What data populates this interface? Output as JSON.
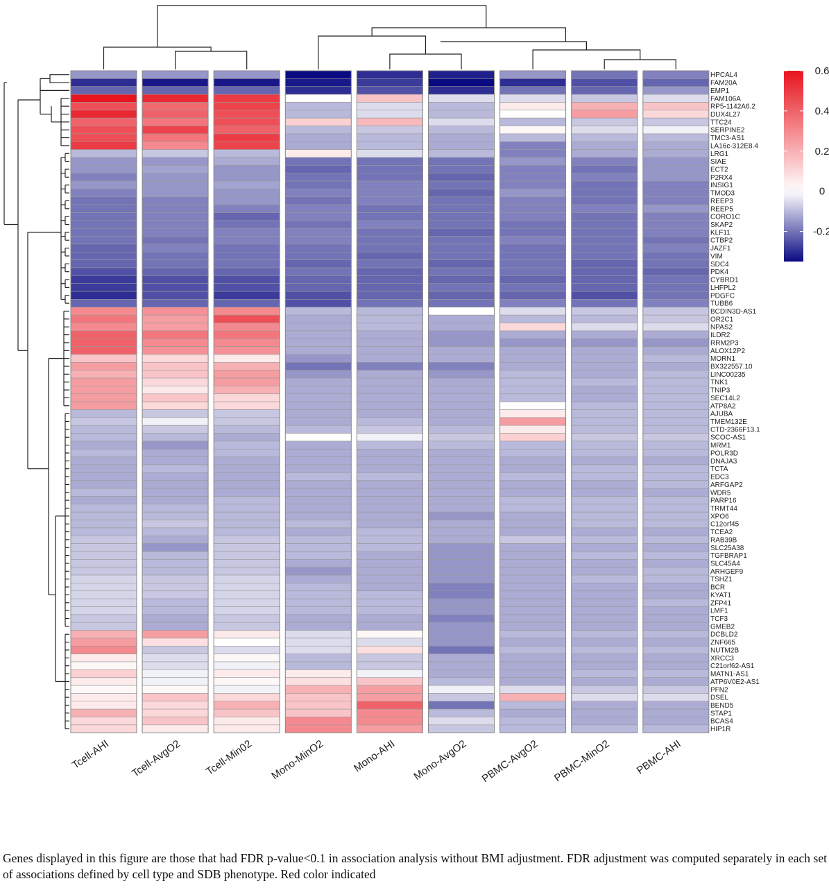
{
  "chart_data": {
    "type": "heatmap",
    "columns": [
      "Tcell-AHI",
      "Tcell-AvgO2",
      "Tcell-Min02",
      "Mono-MinO2",
      "Mono-AHI",
      "Mono-AvgO2",
      "PBMC-AvgO2",
      "PBMC-MinO2",
      "PBMC-AHI"
    ],
    "rows": [
      "HPCAL4",
      "FAM20A",
      "EMP1",
      "FAM106A",
      "RP5-1142A6.2",
      "DUX4L27",
      "TTC24",
      "SERPINE2",
      "TMC3-AS1",
      "LA16c-312E8.4",
      "LRG1",
      "SIAE",
      "ECT2",
      "P2RX4",
      "INSIG1",
      "TMOD3",
      "REEP3",
      "REEP5",
      "CORO1C",
      "SKAP2",
      "KLF11",
      "CTBP2",
      "JAZF1",
      "VIM",
      "SDC4",
      "PDK4",
      "CYBRD1",
      "LHFPL2",
      "PDGFC",
      "TUBB6",
      "BCDIN3D-AS1",
      "OR2C1",
      "NPAS2",
      "ILDR2",
      "RRM2P3",
      "ALOX12P2",
      "MORN1",
      "BX322557.10",
      "LINC00235",
      "TNK1",
      "TNIP3",
      "SEC14L2",
      "ATP8A2",
      "AJUBA",
      "TMEM132E",
      "CTD-2366F13.1",
      "SCOC-AS1",
      "MRM1",
      "POLR3D",
      "DNAJA3",
      "TCTA",
      "EDC3",
      "ARFGAP2",
      "WDR5",
      "PARP16",
      "TRMT44",
      "XPO6",
      "C12orf45",
      "TCEA2",
      "RAB39B",
      "SLC25A38",
      "TGFBRAP1",
      "SLC45A4",
      "ARHGEF9",
      "TSHZ1",
      "BCR",
      "KYAT1",
      "ZFP41",
      "LMF1",
      "TCF3",
      "GMEB2",
      "DCBLD2",
      "ZNF665",
      "NUTM2B",
      "XRCC3",
      "C21orf62-AS1",
      "MATN1-AS1",
      "ATP6V0E2-AS1",
      "PFN2",
      "DSEL",
      "BEND5",
      "STAP1",
      "BCAS4",
      "HIP1R"
    ],
    "values": [
      [
        -0.15,
        -0.15,
        -0.15,
        -0.35,
        -0.3,
        -0.32,
        -0.15,
        -0.2,
        -0.18
      ],
      [
        -0.3,
        -0.33,
        -0.33,
        -0.33,
        -0.28,
        -0.35,
        -0.3,
        -0.25,
        -0.22
      ],
      [
        -0.22,
        -0.22,
        -0.22,
        -0.3,
        -0.25,
        -0.3,
        -0.2,
        -0.22,
        -0.15
      ],
      [
        0.6,
        0.55,
        0.5,
        0.0,
        0.15,
        -0.05,
        -0.05,
        -0.08,
        -0.05
      ],
      [
        0.45,
        0.38,
        0.48,
        -0.1,
        -0.05,
        -0.1,
        0.05,
        0.2,
        0.15
      ],
      [
        0.55,
        0.4,
        0.45,
        -0.1,
        -0.05,
        -0.1,
        0.0,
        0.25,
        0.1
      ],
      [
        0.4,
        0.35,
        0.45,
        0.12,
        0.18,
        -0.05,
        -0.1,
        -0.08,
        -0.08
      ],
      [
        0.45,
        0.48,
        0.4,
        -0.1,
        -0.08,
        -0.1,
        0.02,
        -0.05,
        -0.02
      ],
      [
        0.45,
        0.35,
        0.5,
        -0.12,
        -0.1,
        -0.12,
        -0.1,
        -0.1,
        -0.1
      ],
      [
        0.5,
        0.3,
        0.48,
        -0.12,
        -0.1,
        -0.12,
        -0.18,
        -0.12,
        -0.12
      ],
      [
        -0.1,
        -0.08,
        -0.1,
        0.05,
        -0.05,
        -0.1,
        -0.18,
        -0.12,
        -0.12
      ],
      [
        -0.15,
        -0.15,
        -0.12,
        -0.2,
        -0.2,
        -0.2,
        -0.15,
        -0.18,
        -0.15
      ],
      [
        -0.15,
        -0.13,
        -0.15,
        -0.22,
        -0.2,
        -0.2,
        -0.18,
        -0.2,
        -0.15
      ],
      [
        -0.18,
        -0.15,
        -0.15,
        -0.2,
        -0.2,
        -0.22,
        -0.18,
        -0.18,
        -0.15
      ],
      [
        -0.15,
        -0.15,
        -0.13,
        -0.2,
        -0.18,
        -0.2,
        -0.18,
        -0.2,
        -0.18
      ],
      [
        -0.18,
        -0.15,
        -0.15,
        -0.18,
        -0.18,
        -0.22,
        -0.15,
        -0.2,
        -0.18
      ],
      [
        -0.2,
        -0.18,
        -0.15,
        -0.2,
        -0.18,
        -0.2,
        -0.18,
        -0.2,
        -0.18
      ],
      [
        -0.2,
        -0.18,
        -0.18,
        -0.18,
        -0.2,
        -0.2,
        -0.18,
        -0.18,
        -0.15
      ],
      [
        -0.2,
        -0.18,
        -0.22,
        -0.18,
        -0.2,
        -0.2,
        -0.18,
        -0.2,
        -0.18
      ],
      [
        -0.2,
        -0.18,
        -0.2,
        -0.2,
        -0.18,
        -0.2,
        -0.2,
        -0.2,
        -0.18
      ],
      [
        -0.2,
        -0.18,
        -0.18,
        -0.18,
        -0.2,
        -0.22,
        -0.2,
        -0.2,
        -0.18
      ],
      [
        -0.2,
        -0.2,
        -0.18,
        -0.18,
        -0.2,
        -0.2,
        -0.18,
        -0.2,
        -0.2
      ],
      [
        -0.22,
        -0.18,
        -0.2,
        -0.2,
        -0.2,
        -0.2,
        -0.2,
        -0.2,
        -0.18
      ],
      [
        -0.22,
        -0.2,
        -0.2,
        -0.2,
        -0.22,
        -0.2,
        -0.2,
        -0.2,
        -0.2
      ],
      [
        -0.22,
        -0.2,
        -0.2,
        -0.22,
        -0.2,
        -0.22,
        -0.2,
        -0.22,
        -0.2
      ],
      [
        -0.25,
        -0.22,
        -0.22,
        -0.2,
        -0.22,
        -0.2,
        -0.2,
        -0.22,
        -0.22
      ],
      [
        -0.28,
        -0.25,
        -0.25,
        -0.22,
        -0.22,
        -0.22,
        -0.22,
        -0.22,
        -0.2
      ],
      [
        -0.28,
        -0.25,
        -0.25,
        -0.22,
        -0.22,
        -0.2,
        -0.2,
        -0.22,
        -0.2
      ],
      [
        -0.3,
        -0.25,
        -0.28,
        -0.25,
        -0.22,
        -0.22,
        -0.22,
        -0.25,
        -0.2
      ],
      [
        -0.22,
        -0.22,
        -0.22,
        -0.25,
        -0.2,
        -0.2,
        -0.18,
        -0.2,
        -0.18
      ],
      [
        0.3,
        0.28,
        0.3,
        -0.1,
        -0.1,
        0.0,
        -0.05,
        -0.08,
        -0.08
      ],
      [
        0.35,
        0.25,
        0.45,
        -0.12,
        -0.1,
        -0.12,
        -0.1,
        -0.1,
        -0.08
      ],
      [
        0.3,
        0.25,
        0.3,
        -0.12,
        -0.1,
        -0.12,
        0.1,
        -0.05,
        -0.05
      ],
      [
        0.4,
        0.35,
        0.35,
        -0.12,
        -0.12,
        -0.15,
        -0.12,
        -0.12,
        -0.12
      ],
      [
        0.4,
        0.3,
        0.3,
        -0.12,
        -0.12,
        -0.15,
        -0.15,
        -0.15,
        -0.15
      ],
      [
        0.4,
        0.28,
        0.28,
        -0.12,
        -0.12,
        -0.12,
        -0.12,
        -0.12,
        -0.12
      ],
      [
        0.15,
        0.1,
        0.05,
        -0.15,
        -0.12,
        -0.12,
        -0.12,
        -0.12,
        -0.1
      ],
      [
        0.25,
        0.15,
        0.2,
        -0.2,
        -0.18,
        -0.18,
        -0.12,
        -0.12,
        -0.12
      ],
      [
        0.2,
        0.15,
        0.25,
        -0.15,
        -0.12,
        -0.15,
        -0.1,
        -0.12,
        -0.1
      ],
      [
        0.25,
        0.1,
        0.25,
        -0.12,
        -0.12,
        -0.12,
        -0.1,
        -0.1,
        -0.1
      ],
      [
        0.25,
        0.05,
        0.2,
        -0.12,
        -0.12,
        -0.12,
        -0.1,
        -0.12,
        -0.1
      ],
      [
        0.25,
        0.15,
        0.1,
        -0.12,
        -0.12,
        -0.12,
        -0.1,
        -0.12,
        -0.1
      ],
      [
        0.25,
        0.1,
        0.1,
        -0.12,
        -0.12,
        -0.12,
        0.0,
        -0.1,
        -0.1
      ],
      [
        -0.1,
        -0.08,
        -0.08,
        -0.12,
        -0.12,
        -0.12,
        0.05,
        -0.1,
        -0.1
      ],
      [
        -0.08,
        -0.02,
        -0.08,
        -0.12,
        -0.1,
        -0.12,
        0.25,
        -0.1,
        -0.1
      ],
      [
        -0.1,
        -0.08,
        -0.1,
        -0.1,
        -0.08,
        -0.1,
        0.05,
        -0.1,
        -0.1
      ],
      [
        -0.1,
        -0.1,
        -0.12,
        0.0,
        -0.02,
        -0.08,
        0.12,
        -0.08,
        -0.08
      ],
      [
        -0.12,
        -0.15,
        -0.1,
        -0.12,
        -0.1,
        -0.1,
        -0.1,
        -0.1,
        -0.1
      ],
      [
        -0.1,
        -0.12,
        -0.1,
        -0.12,
        -0.12,
        -0.12,
        -0.1,
        -0.1,
        -0.1
      ],
      [
        -0.12,
        -0.12,
        -0.12,
        -0.12,
        -0.12,
        -0.12,
        -0.12,
        -0.12,
        -0.12
      ],
      [
        -0.12,
        -0.1,
        -0.12,
        -0.12,
        -0.12,
        -0.12,
        -0.12,
        -0.1,
        -0.1
      ],
      [
        -0.12,
        -0.12,
        -0.12,
        -0.1,
        -0.1,
        -0.12,
        -0.1,
        -0.1,
        -0.1
      ],
      [
        -0.12,
        -0.12,
        -0.12,
        -0.12,
        -0.12,
        -0.12,
        -0.12,
        -0.12,
        -0.1
      ],
      [
        -0.1,
        -0.12,
        -0.12,
        -0.12,
        -0.12,
        -0.12,
        -0.12,
        -0.12,
        -0.12
      ],
      [
        -0.12,
        -0.12,
        -0.1,
        -0.12,
        -0.12,
        -0.12,
        -0.1,
        -0.1,
        -0.1
      ],
      [
        -0.1,
        -0.1,
        -0.1,
        -0.12,
        -0.12,
        -0.12,
        -0.1,
        -0.1,
        -0.1
      ],
      [
        -0.1,
        -0.1,
        -0.1,
        -0.12,
        -0.12,
        -0.15,
        -0.12,
        -0.1,
        -0.1
      ],
      [
        -0.1,
        -0.08,
        -0.1,
        -0.1,
        -0.12,
        -0.12,
        -0.12,
        -0.1,
        -0.1
      ],
      [
        -0.1,
        -0.1,
        -0.1,
        -0.12,
        -0.1,
        -0.12,
        -0.12,
        -0.12,
        -0.12
      ],
      [
        -0.08,
        -0.12,
        -0.08,
        -0.1,
        -0.1,
        -0.12,
        -0.08,
        -0.1,
        -0.1
      ],
      [
        -0.08,
        -0.15,
        -0.08,
        -0.1,
        -0.1,
        -0.15,
        -0.12,
        -0.12,
        -0.12
      ],
      [
        -0.08,
        -0.1,
        -0.08,
        -0.1,
        -0.12,
        -0.15,
        -0.12,
        -0.1,
        -0.1
      ],
      [
        -0.08,
        -0.1,
        -0.08,
        -0.12,
        -0.12,
        -0.15,
        -0.12,
        -0.12,
        -0.12
      ],
      [
        -0.08,
        -0.1,
        -0.08,
        -0.15,
        -0.12,
        -0.15,
        -0.12,
        -0.12,
        -0.1
      ],
      [
        -0.06,
        -0.08,
        -0.06,
        -0.12,
        -0.12,
        -0.15,
        -0.12,
        -0.1,
        -0.1
      ],
      [
        -0.06,
        -0.08,
        -0.06,
        -0.1,
        -0.12,
        -0.18,
        -0.12,
        -0.12,
        -0.12
      ],
      [
        -0.06,
        -0.08,
        -0.06,
        -0.1,
        -0.1,
        -0.18,
        -0.12,
        -0.12,
        -0.12
      ],
      [
        -0.06,
        -0.1,
        -0.06,
        -0.1,
        -0.1,
        -0.15,
        -0.12,
        -0.12,
        -0.1
      ],
      [
        -0.06,
        -0.1,
        -0.06,
        -0.1,
        -0.1,
        -0.15,
        -0.12,
        -0.12,
        -0.12
      ],
      [
        -0.08,
        -0.12,
        -0.08,
        -0.12,
        -0.12,
        -0.18,
        -0.12,
        -0.12,
        -0.12
      ],
      [
        -0.08,
        -0.12,
        -0.08,
        -0.12,
        -0.12,
        -0.15,
        -0.12,
        -0.12,
        -0.12
      ],
      [
        0.2,
        0.25,
        0.05,
        -0.05,
        0.02,
        -0.15,
        -0.1,
        -0.1,
        -0.1
      ],
      [
        0.25,
        0.08,
        0.0,
        -0.05,
        -0.05,
        -0.15,
        -0.12,
        -0.12,
        -0.12
      ],
      [
        0.3,
        -0.08,
        -0.05,
        -0.05,
        0.08,
        -0.2,
        -0.1,
        -0.1,
        -0.1
      ],
      [
        0.05,
        -0.05,
        0.02,
        -0.1,
        -0.08,
        -0.12,
        -0.12,
        -0.12,
        -0.12
      ],
      [
        0.02,
        -0.05,
        -0.02,
        -0.1,
        -0.08,
        -0.12,
        -0.12,
        -0.12,
        -0.12
      ],
      [
        0.12,
        -0.02,
        0.05,
        0.05,
        -0.02,
        -0.12,
        -0.12,
        -0.1,
        -0.1
      ],
      [
        0.05,
        -0.02,
        0.02,
        0.08,
        0.15,
        -0.1,
        -0.12,
        -0.12,
        -0.12
      ],
      [
        0.02,
        0.02,
        -0.02,
        0.2,
        0.25,
        -0.02,
        -0.05,
        -0.08,
        -0.08
      ],
      [
        0.05,
        0.15,
        0.1,
        0.15,
        0.25,
        -0.08,
        0.2,
        -0.05,
        -0.05
      ],
      [
        0.05,
        0.1,
        0.2,
        0.15,
        0.4,
        -0.2,
        -0.1,
        -0.12,
        -0.12
      ],
      [
        0.2,
        0.1,
        0.15,
        0.15,
        0.3,
        -0.1,
        -0.12,
        -0.12,
        -0.12
      ],
      [
        0.1,
        0.15,
        0.05,
        0.3,
        0.3,
        -0.05,
        -0.1,
        -0.12,
        -0.12
      ],
      [
        0.1,
        0.05,
        0.05,
        0.3,
        0.25,
        -0.08,
        -0.1,
        -0.1,
        -0.1
      ]
    ],
    "legend": {
      "ticks": [
        0.6,
        0.4,
        0.2,
        0,
        -0.2
      ],
      "range": [
        -0.35,
        0.6
      ]
    },
    "colors": {
      "low": "#0a0a82",
      "mid": "#ffffff",
      "high": "#e8141e",
      "cell_border": "#999999"
    }
  },
  "caption": "Genes displayed in this figure are those that had FDR p-value<0.1 in association analysis without BMI adjustment. FDR adjustment was computed separately in each set of associations defined by cell type and SDB phenotype. Red color indicated"
}
